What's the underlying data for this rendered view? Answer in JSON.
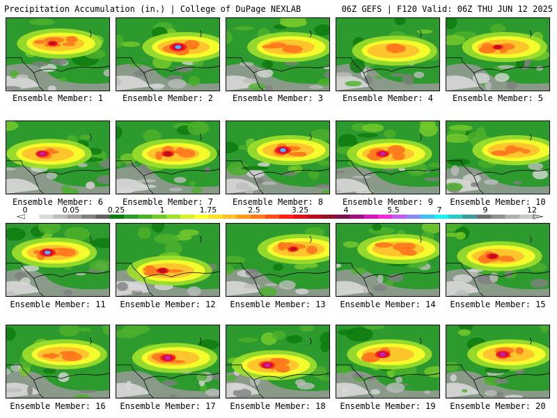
{
  "header": {
    "title_left": "Precipitation Accumulation (in.) | College of DuPage NEXLAB",
    "title_right": "06Z GEFS | F120 Valid: 06Z THU JUN 12 2025"
  },
  "legend": {
    "ticks": [
      "0",
      "0.05",
      "0.25",
      "1",
      "1.75",
      "2.5",
      "3.25",
      "4",
      "5.5",
      "7",
      "9",
      "12"
    ],
    "colors": [
      "#ffffff",
      "#d8d8d8",
      "#bdbdbd",
      "#a0a0a0",
      "#7f7f7f",
      "#626262",
      "#0e7b0e",
      "#2c9a2c",
      "#4cb02c",
      "#74c82c",
      "#a0e02c",
      "#d8f02c",
      "#ffff2c",
      "#ffe02c",
      "#ffc02c",
      "#ff9a1c",
      "#ff7a1c",
      "#ff501c",
      "#ff201c",
      "#e0101c",
      "#b8101c",
      "#901028",
      "#7a1050",
      "#a01080",
      "#d01ab8",
      "#f02ce0",
      "#c060f0",
      "#8a8af0",
      "#40c0f0",
      "#20f0f0",
      "#30c8c8",
      "#409a9a",
      "#707070",
      "#909090",
      "#b0b0b0",
      "#c8c8c8"
    ]
  },
  "members": [
    {
      "label": "Ensemble Member: 1",
      "intensity": 0.55,
      "hot": [
        0.45,
        0.35
      ]
    },
    {
      "label": "Ensemble Member: 2",
      "intensity": 0.9,
      "hot": [
        0.6,
        0.4
      ]
    },
    {
      "label": "Ensemble Member: 3",
      "intensity": 0.45,
      "hot": [
        0.55,
        0.4
      ]
    },
    {
      "label": "Ensemble Member: 4",
      "intensity": 0.5,
      "hot": [
        0.5,
        0.45
      ]
    },
    {
      "label": "Ensemble Member: 5",
      "intensity": 0.55,
      "hot": [
        0.5,
        0.4
      ]
    },
    {
      "label": "Ensemble Member: 6",
      "intensity": 0.7,
      "hot": [
        0.35,
        0.45
      ]
    },
    {
      "label": "Ensemble Member: 7",
      "intensity": 0.65,
      "hot": [
        0.5,
        0.45
      ]
    },
    {
      "label": "Ensemble Member: 8",
      "intensity": 0.85,
      "hot": [
        0.55,
        0.4
      ]
    },
    {
      "label": "Ensemble Member: 9",
      "intensity": 0.7,
      "hot": [
        0.45,
        0.45
      ]
    },
    {
      "label": "Ensemble Member: 10",
      "intensity": 0.45,
      "hot": [
        0.6,
        0.4
      ]
    },
    {
      "label": "Ensemble Member: 11",
      "intensity": 0.85,
      "hot": [
        0.4,
        0.4
      ]
    },
    {
      "label": "Ensemble Member: 12",
      "intensity": 0.65,
      "hot": [
        0.45,
        0.65
      ]
    },
    {
      "label": "Ensemble Member: 13",
      "intensity": 0.55,
      "hot": [
        0.65,
        0.35
      ]
    },
    {
      "label": "Ensemble Member: 14",
      "intensity": 0.45,
      "hot": [
        0.55,
        0.35
      ]
    },
    {
      "label": "Ensemble Member: 15",
      "intensity": 0.65,
      "hot": [
        0.45,
        0.45
      ]
    },
    {
      "label": "Ensemble Member: 16",
      "intensity": 0.45,
      "hot": [
        0.5,
        0.4
      ]
    },
    {
      "label": "Ensemble Member: 17",
      "intensity": 0.8,
      "hot": [
        0.5,
        0.45
      ]
    },
    {
      "label": "Ensemble Member: 18",
      "intensity": 0.75,
      "hot": [
        0.4,
        0.55
      ]
    },
    {
      "label": "Ensemble Member: 19",
      "intensity": 0.8,
      "hot": [
        0.45,
        0.4
      ]
    },
    {
      "label": "Ensemble Member: 20",
      "intensity": 0.75,
      "hot": [
        0.55,
        0.4
      ]
    }
  ]
}
